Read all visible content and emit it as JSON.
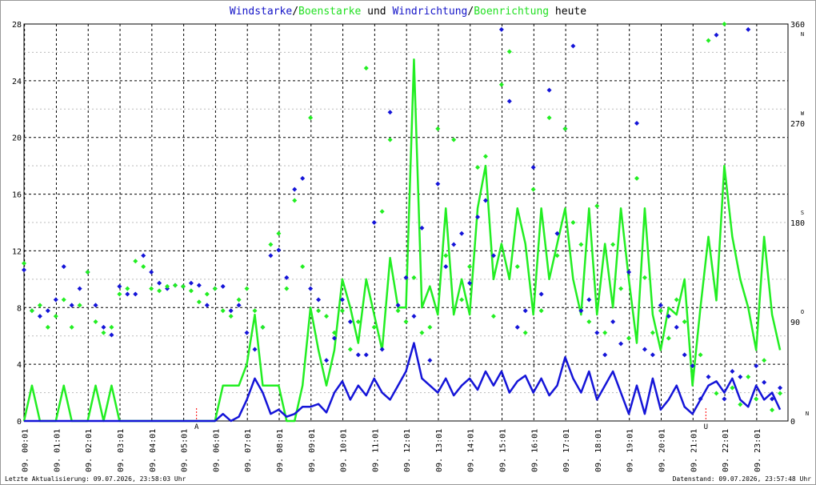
{
  "chart_data": {
    "type": "line",
    "title_parts": [
      "Windstarke",
      "/",
      "Boenstarke",
      " und ",
      "Windrichtung",
      "/",
      "Boenrichtung",
      " heute"
    ],
    "title_colors": [
      "#1414c8",
      "#000000",
      "#22e022",
      "#000000",
      "#1414c8",
      "#000000",
      "#22e022",
      "#000000"
    ],
    "footer_left": "Letzte Aktualisierung: 09.07.2026, 23:58:03 Uhr",
    "footer_right": "Datenstand: 09.07.2026, 23:57:48 Uhr",
    "xlim": [
      0,
      24
    ],
    "xticks": [
      {
        "value": 0.0167,
        "label": "09. 00:01"
      },
      {
        "value": 1.0167,
        "label": "09. 01:01"
      },
      {
        "value": 2.0167,
        "label": "09. 02:01"
      },
      {
        "value": 3.0167,
        "label": "09. 03:01"
      },
      {
        "value": 4.0167,
        "label": "09. 04:01"
      },
      {
        "value": 5.0167,
        "label": "09. 05:01"
      },
      {
        "value": 6.0167,
        "label": "09. 06:01"
      },
      {
        "value": 7.0167,
        "label": "09. 07:01"
      },
      {
        "value": 8.0167,
        "label": "09. 08:01"
      },
      {
        "value": 9.0167,
        "label": "09. 09:01"
      },
      {
        "value": 10.0167,
        "label": "09. 10:01"
      },
      {
        "value": 11.0167,
        "label": "09. 11:01"
      },
      {
        "value": 12.0167,
        "label": "09. 12:01"
      },
      {
        "value": 13.0167,
        "label": "09. 13:01"
      },
      {
        "value": 14.0167,
        "label": "09. 14:01"
      },
      {
        "value": 15.0167,
        "label": "09. 15:01"
      },
      {
        "value": 16.0167,
        "label": "09. 16:01"
      },
      {
        "value": 17.0167,
        "label": "09. 17:01"
      },
      {
        "value": 18.0167,
        "label": "09. 18:01"
      },
      {
        "value": 19.0167,
        "label": "09. 19:01"
      },
      {
        "value": 20.0167,
        "label": "09. 20:01"
      },
      {
        "value": 21.0167,
        "label": "09. 21:01"
      },
      {
        "value": 22.0167,
        "label": "09. 22:01"
      },
      {
        "value": 23.0167,
        "label": "09. 23:01"
      }
    ],
    "ylim": [
      0,
      28
    ],
    "yticks": [
      0,
      4,
      8,
      12,
      16,
      20,
      24,
      28
    ],
    "yminorticks": [
      2,
      6,
      10,
      14,
      18,
      22,
      26
    ],
    "y2lim": [
      0,
      360
    ],
    "y2ticks": [
      0,
      90,
      180,
      270,
      360
    ],
    "y2tick_directions": [
      "N",
      "O",
      "S",
      "W",
      "N"
    ],
    "grid": true,
    "annotations": [
      {
        "label": "A",
        "x": 5.42,
        "color": "#ff0000"
      },
      {
        "label": "U",
        "x": 21.42,
        "color": "#ff0000"
      }
    ],
    "x": [
      0,
      0.25,
      0.5,
      0.75,
      1,
      1.25,
      1.5,
      1.75,
      2,
      2.25,
      2.5,
      2.75,
      3,
      3.25,
      3.5,
      3.75,
      4,
      4.25,
      4.5,
      4.75,
      5,
      5.25,
      5.5,
      5.75,
      6,
      6.25,
      6.5,
      6.75,
      7,
      7.25,
      7.5,
      7.75,
      8,
      8.25,
      8.5,
      8.75,
      9,
      9.25,
      9.5,
      9.75,
      10,
      10.25,
      10.5,
      10.75,
      11,
      11.25,
      11.5,
      11.75,
      12,
      12.25,
      12.5,
      12.75,
      13,
      13.25,
      13.5,
      13.75,
      14,
      14.25,
      14.5,
      14.75,
      15,
      15.25,
      15.5,
      15.75,
      16,
      16.25,
      16.5,
      16.75,
      17,
      17.25,
      17.5,
      17.75,
      18,
      18.25,
      18.5,
      18.75,
      19,
      19.25,
      19.5,
      19.75,
      20,
      20.25,
      20.5,
      20.75,
      21,
      21.25,
      21.5,
      21.75,
      22,
      22.25,
      22.5,
      22.75,
      23,
      23.25,
      23.5,
      23.75
    ],
    "series": [
      {
        "name": "Boenstarke",
        "color": "#22ee22",
        "style": "line",
        "values": [
          0,
          2.5,
          0,
          0,
          0,
          2.5,
          0,
          0,
          0,
          2.5,
          0,
          2.5,
          0,
          0,
          0,
          0,
          0,
          0,
          0,
          0,
          0,
          0,
          0,
          0,
          0,
          2.5,
          2.5,
          2.5,
          4,
          7.5,
          2.5,
          2.5,
          2.5,
          0,
          0,
          2.5,
          8,
          5,
          2.5,
          5,
          10,
          8,
          5.5,
          10,
          7.5,
          5,
          11.5,
          8,
          8,
          25.5,
          8,
          9.5,
          7.5,
          15,
          7.5,
          10,
          7.5,
          15,
          18,
          10,
          12.5,
          10,
          15,
          12.5,
          7.5,
          15,
          10,
          12.5,
          15,
          10,
          7.5,
          15,
          7.5,
          12.5,
          8,
          15,
          10,
          5.5,
          15,
          7.5,
          5,
          8,
          7.5,
          10,
          2.5,
          8,
          13,
          8.5,
          18,
          13,
          10,
          8,
          5,
          13,
          7.5,
          5
        ]
      },
      {
        "name": "Windstarke",
        "color": "#1414d8",
        "style": "line",
        "values": [
          0,
          0,
          0,
          0,
          0,
          0,
          0,
          0,
          0,
          0,
          0,
          0,
          0,
          0,
          0,
          0,
          0,
          0,
          0,
          0,
          0,
          0,
          0,
          0,
          0,
          0.5,
          0,
          0.3,
          1.5,
          3,
          2,
          0.5,
          0.8,
          0.3,
          0.5,
          1,
          1,
          1.2,
          0.6,
          2,
          2.8,
          1.5,
          2.5,
          1.8,
          3,
          2,
          1.5,
          2.5,
          3.5,
          5.5,
          3,
          2.5,
          2,
          3,
          1.8,
          2.5,
          3,
          2.2,
          3.5,
          2.5,
          3.5,
          2,
          2.8,
          3.2,
          2,
          3,
          1.8,
          2.5,
          4.5,
          3,
          2,
          3.5,
          1.5,
          2.5,
          3.5,
          2,
          0.5,
          2.5,
          0.5,
          3,
          0.8,
          1.5,
          2.5,
          1,
          0.5,
          1.5,
          2.5,
          2.8,
          2,
          3,
          1.5,
          1,
          2.5,
          1.5,
          2,
          0.8
        ]
      },
      {
        "name": "Windrichtung",
        "color": "#1414d8",
        "style": "dots",
        "axis": "y2",
        "values": [
          137,
          100,
          95,
          100,
          110,
          140,
          105,
          120,
          135,
          105,
          85,
          78,
          122,
          115,
          115,
          150,
          135,
          125,
          120,
          123,
          122,
          125,
          123,
          105,
          120,
          122,
          100,
          105,
          80,
          65,
          85,
          150,
          155,
          130,
          210,
          220,
          120,
          110,
          55,
          75,
          110,
          90,
          60,
          60,
          180,
          65,
          280,
          105,
          130,
          95,
          175,
          55,
          215,
          140,
          160,
          170,
          125,
          185,
          200,
          150,
          355,
          290,
          85,
          100,
          230,
          115,
          300,
          170,
          265,
          340,
          100,
          110,
          80,
          60,
          90,
          70,
          135,
          270,
          65,
          60,
          105,
          95,
          85,
          60,
          50,
          20,
          40,
          350,
          20,
          45,
          40,
          355,
          50,
          35,
          20,
          30
        ]
      },
      {
        "name": "Boenrichtung",
        "color": "#22ee22",
        "style": "dots",
        "axis": "y2",
        "values": [
          143,
          100,
          105,
          85,
          95,
          110,
          85,
          105,
          135,
          90,
          80,
          85,
          115,
          120,
          145,
          140,
          120,
          118,
          122,
          123,
          122,
          118,
          108,
          115,
          120,
          100,
          95,
          110,
          120,
          100,
          85,
          160,
          170,
          120,
          200,
          140,
          275,
          100,
          95,
          80,
          100,
          65,
          90,
          320,
          85,
          190,
          255,
          100,
          90,
          130,
          80,
          85,
          265,
          150,
          255,
          110,
          140,
          230,
          240,
          95,
          305,
          335,
          140,
          80,
          210,
          100,
          275,
          150,
          265,
          180,
          160,
          90,
          195,
          80,
          160,
          120,
          75,
          220,
          130,
          80,
          100,
          75,
          110,
          90,
          45,
          60,
          345,
          25,
          360,
          30,
          15,
          40,
          20,
          55,
          10,
          25
        ]
      }
    ]
  }
}
